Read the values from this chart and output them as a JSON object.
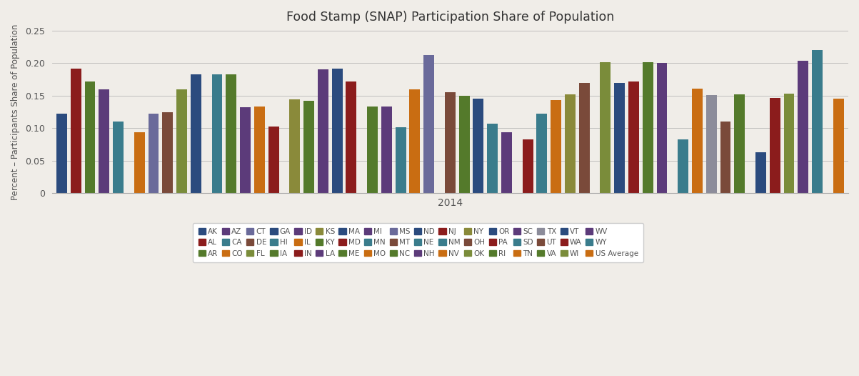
{
  "title": "Food Stamp (SNAP) Participation Share of Population",
  "ylabel": "Percent – Participants Share of Population",
  "xlabel": "2014",
  "ylim": [
    0,
    0.25
  ],
  "yticks": [
    0,
    0.05,
    0.1,
    0.15,
    0.2,
    0.25
  ],
  "background_color": "#f0ede8",
  "states": [
    "AK",
    "AL",
    "AR",
    "AZ",
    "CA",
    "CO",
    "CT",
    "DE",
    "FL",
    "GA",
    "HI",
    "IA",
    "ID",
    "IL",
    "IN",
    "KS",
    "KY",
    "LA",
    "MA",
    "MD",
    "ME",
    "MI",
    "MN",
    "MO",
    "MS",
    "MT",
    "NC",
    "ND",
    "NE",
    "NH",
    "NJ",
    "NM",
    "NV",
    "NY",
    "OH",
    "OK",
    "OR",
    "PA",
    "RI",
    "SC",
    "SD",
    "TN",
    "TX",
    "UT",
    "VA",
    "VT",
    "WA",
    "WI",
    "WV",
    "WY",
    "US Average"
  ],
  "values": [
    0.122,
    0.192,
    0.172,
    0.16,
    0.11,
    0.094,
    0.122,
    0.125,
    0.16,
    0.183,
    0.183,
    0.183,
    0.132,
    0.133,
    0.102,
    0.144,
    0.142,
    0.191,
    0.192,
    0.172,
    0.133,
    0.133,
    0.101,
    0.16,
    0.213,
    0.155,
    0.15,
    0.145,
    0.107,
    0.094,
    0.083,
    0.122,
    0.143,
    0.152,
    0.17,
    0.202,
    0.17,
    0.172,
    0.201,
    0.2,
    0.083,
    0.161,
    0.151,
    0.11,
    0.152,
    0.063,
    0.146,
    0.153,
    0.204,
    0.22,
    0.145
  ],
  "bar_colors": [
    "#2b4b7e",
    "#8b1c1c",
    "#547a2b",
    "#5c3b7a",
    "#3a7c8c",
    "#c96d12",
    "#6a6a9a",
    "#7a4a3a",
    "#7a8c3a",
    "#2b4b7e",
    "#3a7c8c",
    "#547a2b",
    "#5c3b7a",
    "#c96d12",
    "#8b1c1c",
    "#8a8a3a",
    "#547a2b",
    "#5c3b7a",
    "#2b4b7e",
    "#8b1c1c",
    "#547a2b",
    "#5c3b7a",
    "#3a7c8c",
    "#c96d12",
    "#6a6a9a",
    "#7a4a3a",
    "#547a2b",
    "#2b4b7e",
    "#3a7c8c",
    "#5c3b7a",
    "#8b1c1c",
    "#3a7c8c",
    "#c96d12",
    "#8a8a3a",
    "#7a4a3a",
    "#7a8c3a",
    "#2b4b7e",
    "#8b1c1c",
    "#547a2b",
    "#5c3b7a",
    "#3a7c8c",
    "#c96d12",
    "#8c8c9a",
    "#7a4a3a",
    "#547a2b",
    "#2b4b7e",
    "#8b1c1c",
    "#7a8c3a",
    "#5c3b7a",
    "#3a7c8c",
    "#c96d12"
  ],
  "legend_entries": [
    [
      "AK",
      "#2b4b7e"
    ],
    [
      "AL",
      "#8b1c1c"
    ],
    [
      "AR",
      "#547a2b"
    ],
    [
      "AZ",
      "#5c3b7a"
    ],
    [
      "CA",
      "#3a7c8c"
    ],
    [
      "CO",
      "#c96d12"
    ],
    [
      "CT",
      "#6a6a9a"
    ],
    [
      "DE",
      "#7a4a3a"
    ],
    [
      "FL",
      "#7a8c3a"
    ],
    [
      "GA",
      "#2b4b7e"
    ],
    [
      "HI",
      "#3a7c8c"
    ],
    [
      "IA",
      "#547a2b"
    ],
    [
      "ID",
      "#5c3b7a"
    ],
    [
      "IL",
      "#c96d12"
    ],
    [
      "IN",
      "#8b1c1c"
    ],
    [
      "KS",
      "#8a8a3a"
    ],
    [
      "KY",
      "#547a2b"
    ],
    [
      "LA",
      "#5c3b7a"
    ],
    [
      "MA",
      "#2b4b7e"
    ],
    [
      "MD",
      "#8b1c1c"
    ],
    [
      "ME",
      "#547a2b"
    ],
    [
      "MI",
      "#5c3b7a"
    ],
    [
      "MN",
      "#3a7c8c"
    ],
    [
      "MO",
      "#c96d12"
    ],
    [
      "MS",
      "#6a6a9a"
    ],
    [
      "MT",
      "#7a4a3a"
    ],
    [
      "NC",
      "#547a2b"
    ],
    [
      "ND",
      "#2b4b7e"
    ],
    [
      "NE",
      "#3a7c8c"
    ],
    [
      "NH",
      "#5c3b7a"
    ],
    [
      "NJ",
      "#8b1c1c"
    ],
    [
      "NM",
      "#3a7c8c"
    ],
    [
      "NV",
      "#c96d12"
    ],
    [
      "NY",
      "#8a8a3a"
    ],
    [
      "OH",
      "#7a4a3a"
    ],
    [
      "OK",
      "#7a8c3a"
    ],
    [
      "OR",
      "#2b4b7e"
    ],
    [
      "PA",
      "#8b1c1c"
    ],
    [
      "RI",
      "#547a2b"
    ],
    [
      "SC",
      "#5c3b7a"
    ],
    [
      "SD",
      "#3a7c8c"
    ],
    [
      "TN",
      "#c96d12"
    ],
    [
      "TX",
      "#8c8c9a"
    ],
    [
      "UT",
      "#7a4a3a"
    ],
    [
      "VA",
      "#547a2b"
    ],
    [
      "VT",
      "#2b4b7e"
    ],
    [
      "WA",
      "#8b1c1c"
    ],
    [
      "WI",
      "#7a8c3a"
    ],
    [
      "WV",
      "#5c3b7a"
    ],
    [
      "WY",
      "#3a7c8c"
    ],
    [
      "US Average",
      "#c96d12"
    ]
  ]
}
